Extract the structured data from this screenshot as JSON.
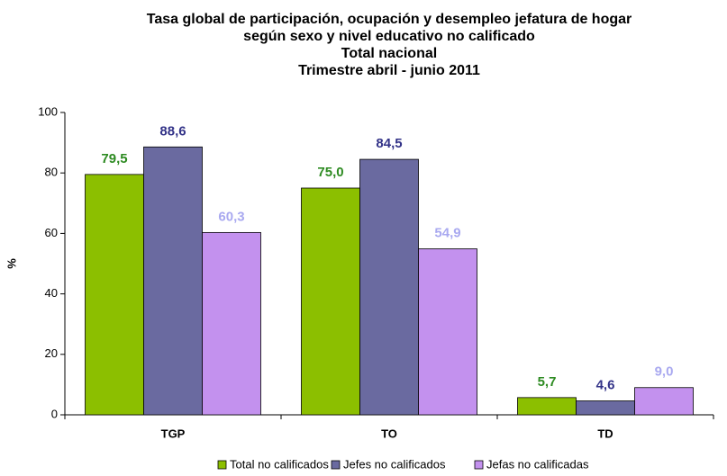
{
  "chart_data": {
    "type": "bar",
    "title": [
      "Tasa global de participación, ocupación y desempleo jefatura de hogar",
      "según sexo y  nivel educativo no calificado",
      "Total nacional",
      "Trimestre abril - junio 2011"
    ],
    "y_label": "%",
    "categories": [
      "TGP",
      "TO",
      "TD"
    ],
    "series": [
      {
        "name": "Total no calificados",
        "color": "#8cbf00",
        "label_color": "#2e8b22",
        "values": [
          79.5,
          75.0,
          5.7
        ],
        "value_labels": [
          "79,5",
          "75,0",
          "5,7"
        ]
      },
      {
        "name": "Jefes no calificados",
        "color": "#6a6aa0",
        "label_color": "#333388",
        "values": [
          88.6,
          84.5,
          4.6
        ],
        "value_labels": [
          "88,6",
          "84,5",
          "4,6"
        ]
      },
      {
        "name": "Jefas no calificadas",
        "color": "#c391ee",
        "label_color": "#a9a9f0",
        "values": [
          60.3,
          54.9,
          9.0
        ],
        "value_labels": [
          "60,3",
          "54,9",
          "9,0"
        ]
      }
    ],
    "ylim": [
      0,
      100
    ],
    "yticks": [
      0,
      20,
      40,
      60,
      80,
      100
    ],
    "grid": false,
    "legend": "bottom"
  }
}
